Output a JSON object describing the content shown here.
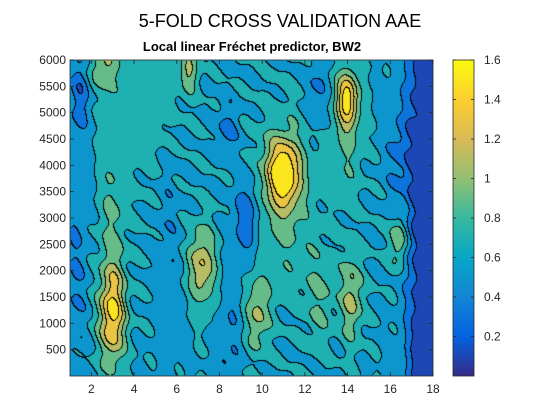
{
  "figure": {
    "title": "5-FOLD CROSS VALIDATION AAE",
    "subtitle": "Local linear Fréchet predictor, BW2"
  },
  "chart_data": {
    "type": "heatmap",
    "style": "filled contour",
    "colormap": "parula",
    "title": "5-FOLD CROSS VALIDATION AAE",
    "subtitle": "Local linear Fréchet predictor, BW2",
    "xlabel": "",
    "ylabel": "",
    "xlim": [
      1,
      18
    ],
    "ylim": [
      0,
      6000
    ],
    "x_ticks": [
      2,
      4,
      6,
      8,
      10,
      12,
      14,
      16,
      18
    ],
    "y_ticks": [
      500,
      1000,
      1500,
      2000,
      2500,
      3000,
      3500,
      4000,
      4500,
      5000,
      5500,
      6000
    ],
    "colorbar": {
      "range": [
        0,
        1.6
      ],
      "ticks": [
        0.2,
        0.4,
        0.6,
        0.8,
        1,
        1.2,
        1.4,
        1.6
      ],
      "placement": "right"
    },
    "contour_levels": [
      0.2,
      0.4,
      0.6,
      0.8,
      1.0,
      1.2,
      1.4
    ],
    "hotspots": [
      {
        "x": 11,
        "y": 3850,
        "value": 1.55
      },
      {
        "x": 3,
        "y": 1150,
        "value": 1.42
      },
      {
        "x": 14,
        "y": 5250,
        "value": 1.38
      },
      {
        "x": 7.2,
        "y": 2100,
        "value": 1.25
      },
      {
        "x": 14.2,
        "y": 1500,
        "value": 1.08
      },
      {
        "x": 2.6,
        "y": 5850,
        "value": 1.05
      },
      {
        "x": 9.8,
        "y": 1200,
        "value": 1.05
      },
      {
        "x": 6.6,
        "y": 5800,
        "value": 1.05
      },
      {
        "x": 16.4,
        "y": 2550,
        "value": 1.05
      }
    ],
    "lows": [
      {
        "x": 17.5,
        "y": 1800,
        "value": 0.05
      },
      {
        "x": 9.3,
        "y": 3000,
        "value": 0.28
      },
      {
        "x": 8.4,
        "y": 4700,
        "value": 0.35
      },
      {
        "x": 1.5,
        "y": 5400,
        "value": 0.3
      },
      {
        "x": 12.6,
        "y": 5400,
        "value": 0.4
      },
      {
        "x": 16.4,
        "y": 4200,
        "value": 0.4
      }
    ],
    "grid": false,
    "legend": "none"
  },
  "colors": {
    "parula_low": "#352a87",
    "parula_mid": "#21b1b3",
    "parula_high": "#f9fb0e",
    "contour_line": "#000000",
    "axes": "#262626"
  }
}
